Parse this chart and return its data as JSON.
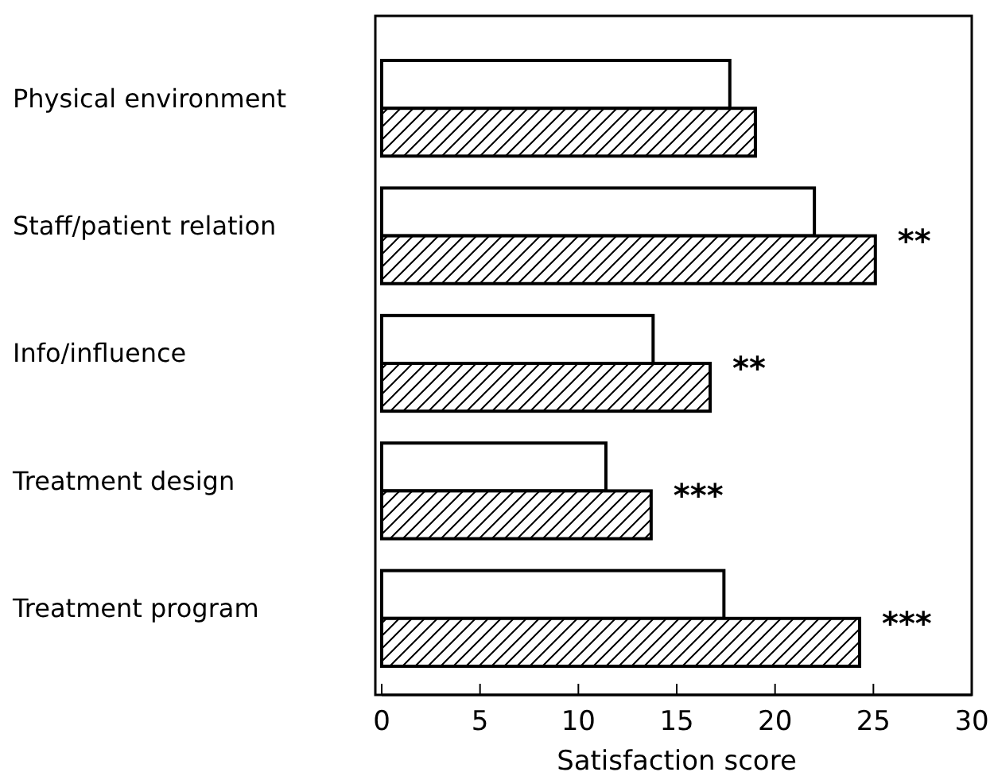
{
  "chart_data": {
    "type": "bar",
    "orientation": "horizontal",
    "xlabel": "Satisfaction score",
    "categories": [
      "Physical environment",
      "Staff/patient relation",
      "Info/influence",
      "Treatment design",
      "Treatment program"
    ],
    "series": [
      {
        "color": "#ffffff",
        "values": [
          17.7,
          22.0,
          13.8,
          11.4,
          17.4
        ]
      },
      {
        "color": "#000000",
        "values": [
          19.0,
          25.1,
          16.7,
          13.7,
          24.3
        ]
      }
    ],
    "xlim": [
      0,
      30
    ],
    "xticks": [
      0,
      5,
      10,
      15,
      20,
      25,
      30
    ],
    "grid": false,
    "annotations": [
      "**",
      "**",
      "***",
      "***"
    ]
  }
}
